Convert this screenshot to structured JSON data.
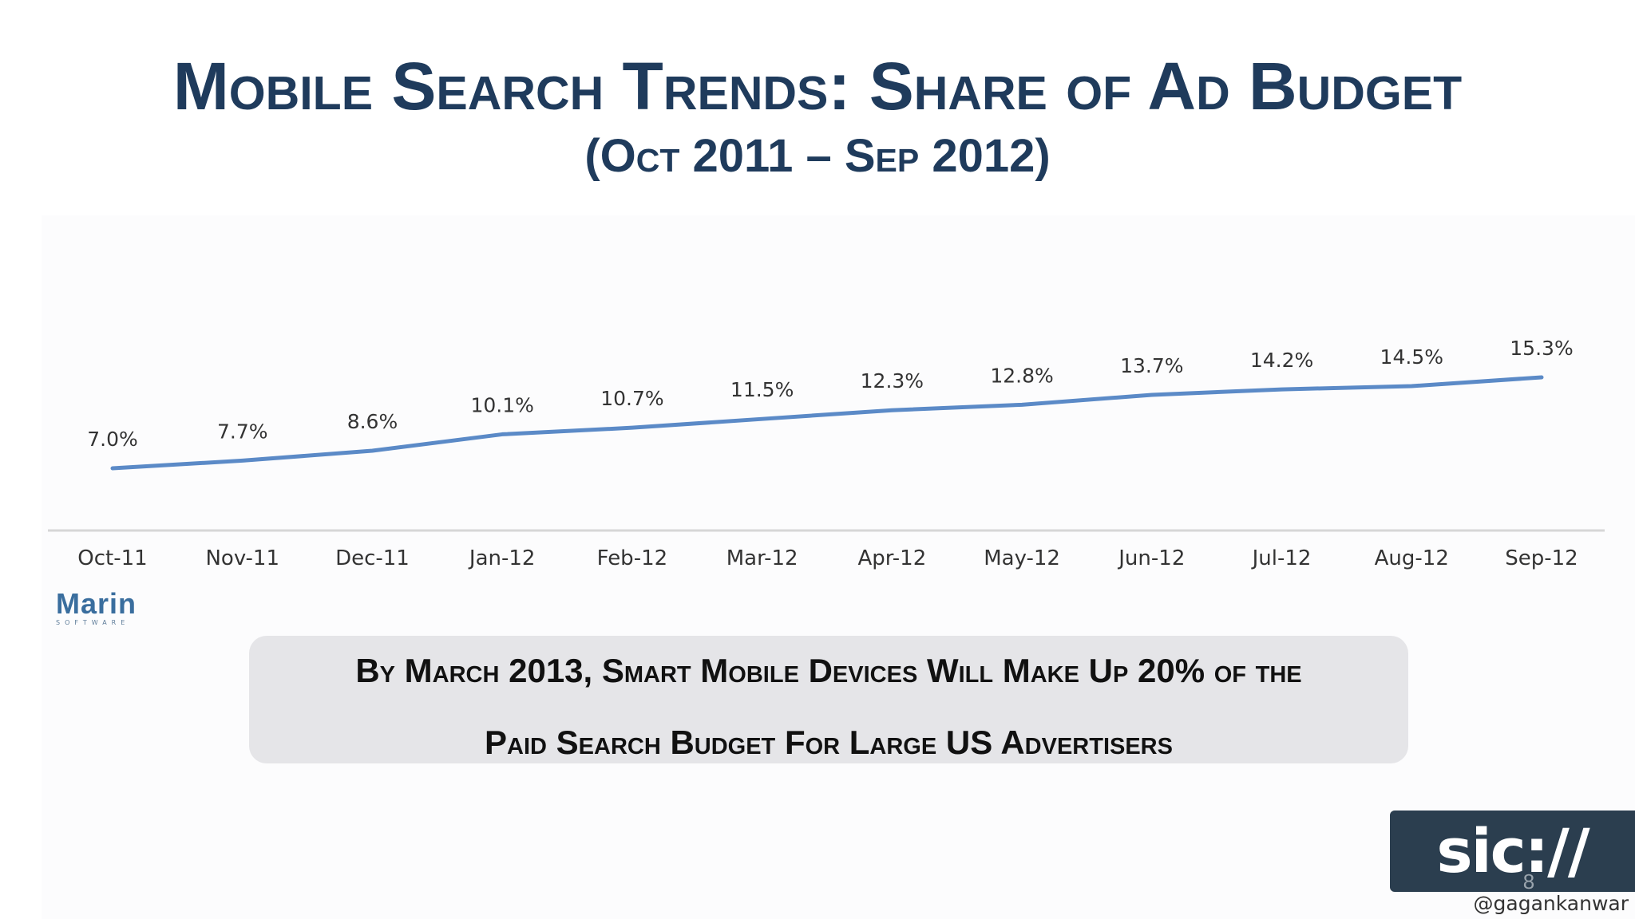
{
  "slide": {
    "title": "Mobile Search Trends: Share of  Ad Budget",
    "subtitle": "(Oct 2011 – Sep 2012)",
    "callout_line1": "By March 2013, Smart Mobile Devices Will Make Up 20% of the",
    "callout_line2": "Paid Search Budget For Large US Advertisers",
    "logo_text": "Marin",
    "logo_subtext": "SOFTWARE",
    "badge_text": "sic://",
    "page_number": "8",
    "handle": "@gagankanwar"
  },
  "chart_data": {
    "type": "line",
    "categories": [
      "Oct-11",
      "Nov-11",
      "Dec-11",
      "Jan-12",
      "Feb-12",
      "Mar-12",
      "Apr-12",
      "May-12",
      "Jun-12",
      "Jul-12",
      "Aug-12",
      "Sep-12"
    ],
    "series": [
      {
        "values": [
          7.0,
          7.7,
          8.6,
          10.1,
          10.7,
          11.5,
          12.3,
          12.8,
          13.7,
          14.2,
          14.5,
          15.3
        ],
        "labels": [
          "7.0%",
          "7.7%",
          "8.6%",
          "10.1%",
          "10.7%",
          "11.5%",
          "12.3%",
          "12.8%",
          "13.7%",
          "14.2%",
          "14.5%",
          "15.3%"
        ],
        "color": "#5b8ac7"
      }
    ],
    "ylim": [
      0,
      17
    ],
    "grid": false,
    "colors": {
      "line": "#5b8ac7",
      "axis": "#d6d6d6"
    }
  }
}
